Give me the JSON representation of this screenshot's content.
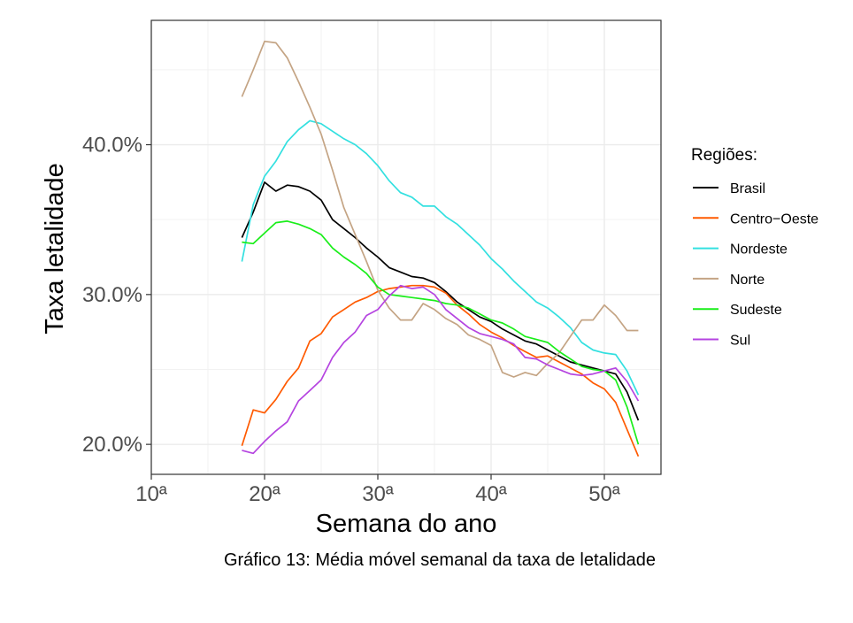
{
  "chart_data": {
    "type": "line",
    "title": "",
    "xlabel": "Semana do ano",
    "ylabel": "Taxa letalidade",
    "xlim": [
      10,
      55
    ],
    "ylim": [
      18,
      48.3
    ],
    "grid": true,
    "x_ticks": [
      {
        "value": 10,
        "label": "10ª"
      },
      {
        "value": 20,
        "label": "20ª"
      },
      {
        "value": 30,
        "label": "30ª"
      },
      {
        "value": 40,
        "label": "40ª"
      },
      {
        "value": 50,
        "label": "50ª"
      }
    ],
    "y_ticks": [
      {
        "value": 20,
        "label": "20.0%"
      },
      {
        "value": 30,
        "label": "30.0%"
      },
      {
        "value": 40,
        "label": "40.0%"
      }
    ],
    "legend_title": "Regiões:",
    "legend_position": "right",
    "x": [
      18,
      19,
      20,
      21,
      22,
      23,
      24,
      25,
      26,
      27,
      28,
      29,
      30,
      31,
      32,
      33,
      34,
      35,
      36,
      37,
      38,
      39,
      40,
      41,
      42,
      43,
      44,
      45,
      46,
      47,
      48,
      49,
      50,
      51,
      52,
      53
    ],
    "series": [
      {
        "name": "Brasil",
        "color": "#000000",
        "values": [
          33.8,
          35.5,
          37.5,
          36.9,
          37.3,
          37.2,
          36.9,
          36.3,
          35.0,
          34.4,
          33.8,
          33.1,
          32.5,
          31.8,
          31.5,
          31.2,
          31.1,
          30.8,
          30.2,
          29.5,
          29.0,
          28.5,
          28.2,
          27.7,
          27.3,
          26.9,
          26.7,
          26.3,
          25.9,
          25.5,
          25.3,
          25.1,
          24.9,
          24.7,
          23.5,
          21.6
        ]
      },
      {
        "name": "Centro−Oeste",
        "color": "#ff5a00",
        "values": [
          19.9,
          22.3,
          22.1,
          23.0,
          24.2,
          25.1,
          26.9,
          27.4,
          28.5,
          29.0,
          29.5,
          29.8,
          30.2,
          30.4,
          30.5,
          30.6,
          30.6,
          30.5,
          30.1,
          29.3,
          28.7,
          28.0,
          27.5,
          27.1,
          26.6,
          26.2,
          25.8,
          25.9,
          25.5,
          25.1,
          24.7,
          24.1,
          23.7,
          22.8,
          21.0,
          19.2
        ]
      },
      {
        "name": "Nordeste",
        "color": "#33e0e0",
        "values": [
          32.2,
          36.0,
          37.9,
          38.9,
          40.2,
          41.0,
          41.6,
          41.4,
          40.9,
          40.4,
          40.0,
          39.4,
          38.6,
          37.6,
          36.8,
          36.5,
          35.9,
          35.9,
          35.2,
          34.7,
          34.0,
          33.3,
          32.4,
          31.7,
          30.9,
          30.2,
          29.5,
          29.1,
          28.5,
          27.8,
          26.8,
          26.3,
          26.1,
          26.0,
          24.9,
          23.3
        ]
      },
      {
        "name": "Norte",
        "color": "#c4a484",
        "values": [
          43.2,
          45.0,
          46.9,
          46.8,
          45.8,
          44.2,
          42.5,
          40.7,
          38.3,
          35.8,
          34.0,
          32.2,
          30.3,
          29.1,
          28.3,
          28.3,
          29.4,
          29.0,
          28.4,
          28.0,
          27.3,
          27.0,
          26.6,
          24.8,
          24.5,
          24.8,
          24.6,
          25.4,
          26.1,
          27.2,
          28.3,
          28.3,
          29.3,
          28.6,
          27.6,
          27.6
        ]
      },
      {
        "name": "Sudeste",
        "color": "#1aee1a",
        "values": [
          33.5,
          33.4,
          34.1,
          34.8,
          34.9,
          34.7,
          34.4,
          34.0,
          33.1,
          32.5,
          32.0,
          31.4,
          30.5,
          30.0,
          29.9,
          29.8,
          29.7,
          29.6,
          29.4,
          29.3,
          29.1,
          28.7,
          28.3,
          28.1,
          27.7,
          27.2,
          27.0,
          26.8,
          26.2,
          25.7,
          25.2,
          25.0,
          24.9,
          24.3,
          22.5,
          20.0
        ]
      },
      {
        "name": "Sul",
        "color": "#b544e0",
        "values": [
          19.6,
          19.4,
          20.2,
          20.9,
          21.5,
          22.9,
          23.6,
          24.3,
          25.8,
          26.8,
          27.5,
          28.6,
          29.0,
          29.9,
          30.6,
          30.4,
          30.5,
          30.0,
          29.0,
          28.4,
          27.8,
          27.4,
          27.2,
          27.0,
          26.7,
          25.8,
          25.7,
          25.3,
          25.0,
          24.7,
          24.6,
          24.7,
          24.9,
          25.1,
          24.2,
          22.9
        ]
      }
    ]
  },
  "caption": "Gráfico 13: Média móvel semanal da taxa de letalidade"
}
